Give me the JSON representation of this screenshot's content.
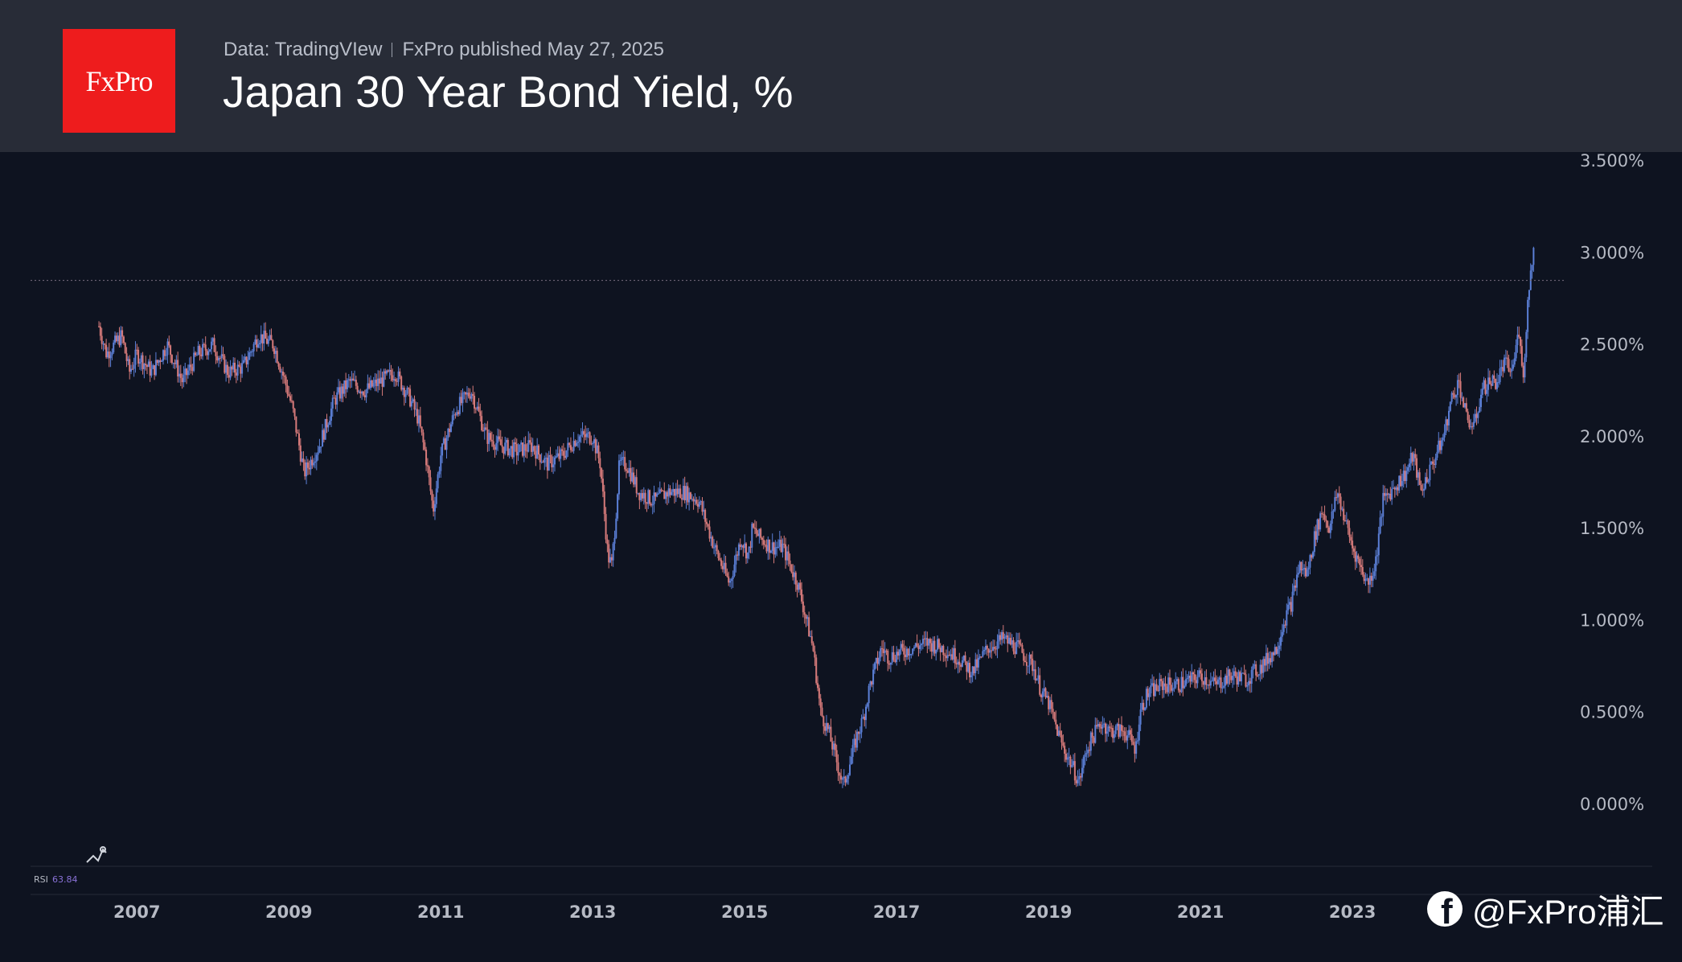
{
  "header": {
    "logo_text": "FxPro",
    "source": "Data: TradingVIew",
    "published": "FxPro published May 27, 2025",
    "title": "Japan 30 Year Bond Yield, %"
  },
  "rsi": {
    "label": "RSI",
    "value": "63.84"
  },
  "watermark": {
    "text": "@FxPro浦汇",
    "icon": "facebook-icon"
  },
  "colors": {
    "background": "#0e1320",
    "header": "#282c37",
    "logo": "#ee1c1d",
    "up": "#5b7fd6",
    "down": "#d67a7a"
  },
  "chart_data": {
    "type": "line",
    "style": "candlestick (weekly)",
    "ylim": [
      0,
      3.5
    ],
    "yticks": [
      "0.000%",
      "0.500%",
      "1.000%",
      "1.500%",
      "2.000%",
      "2.500%",
      "3.000%",
      "3.500%"
    ],
    "xticks": [
      "2007",
      "2009",
      "2011",
      "2013",
      "2015",
      "2017",
      "2019",
      "2021",
      "2023"
    ],
    "xrange": [
      2005.6,
      2026.1
    ],
    "current_level": 2.85,
    "grid": false,
    "series": [
      {
        "x": [
          2006.5,
          2006.6,
          2006.7,
          2006.8,
          2006.9,
          2007.0,
          2007.2,
          2007.4,
          2007.6,
          2007.8,
          2008.0,
          2008.2,
          2008.4,
          2008.6,
          2008.8,
          2008.95,
          2009.05,
          2009.2,
          2009.4,
          2009.6,
          2009.8,
          2010.0,
          2010.2,
          2010.4,
          2010.6,
          2010.7,
          2010.8,
          2010.9,
          2011.0,
          2011.2,
          2011.4,
          2011.6,
          2011.8,
          2012.0,
          2012.2,
          2012.4,
          2012.6,
          2012.8,
          2013.0,
          2013.1,
          2013.2,
          2013.25,
          2013.3,
          2013.35,
          2013.45,
          2013.6,
          2013.8,
          2014.0,
          2014.2,
          2014.4,
          2014.6,
          2014.8,
          2014.95,
          2015.05,
          2015.1,
          2015.2,
          2015.35,
          2015.5,
          2015.7,
          2015.9,
          2016.0,
          2016.1,
          2016.2,
          2016.3,
          2016.4,
          2016.5,
          2016.55,
          2016.65,
          2016.8,
          2016.9,
          2017.0,
          2017.2,
          2017.4,
          2017.6,
          2017.8,
          2018.0,
          2018.2,
          2018.4,
          2018.6,
          2018.8,
          2018.9,
          2019.0,
          2019.1,
          2019.2,
          2019.3,
          2019.4,
          2019.5,
          2019.6,
          2019.7,
          2019.8,
          2020.0,
          2020.15,
          2020.2,
          2020.3,
          2020.5,
          2020.7,
          2020.9,
          2021.0,
          2021.2,
          2021.4,
          2021.6,
          2021.8,
          2022.0,
          2022.1,
          2022.2,
          2022.3,
          2022.4,
          2022.5,
          2022.6,
          2022.7,
          2022.8,
          2022.9,
          2023.0,
          2023.1,
          2023.2,
          2023.3,
          2023.4,
          2023.5,
          2023.6,
          2023.7,
          2023.8,
          2023.9,
          2024.0,
          2024.1,
          2024.2,
          2024.3,
          2024.4,
          2024.5,
          2024.6,
          2024.7,
          2024.8,
          2024.9,
          2025.0,
          2025.1,
          2025.2,
          2025.25,
          2025.3,
          2025.35,
          2025.38,
          2025.4
        ],
        "values": [
          2.6,
          2.45,
          2.5,
          2.55,
          2.35,
          2.45,
          2.35,
          2.5,
          2.3,
          2.45,
          2.5,
          2.35,
          2.38,
          2.55,
          2.5,
          2.3,
          2.15,
          1.8,
          1.95,
          2.2,
          2.3,
          2.25,
          2.3,
          2.35,
          2.2,
          2.1,
          1.9,
          1.6,
          1.9,
          2.15,
          2.25,
          2.0,
          1.95,
          1.92,
          1.95,
          1.85,
          1.9,
          2.0,
          2.0,
          1.85,
          1.35,
          1.3,
          1.55,
          1.85,
          1.85,
          1.7,
          1.65,
          1.7,
          1.7,
          1.65,
          1.4,
          1.2,
          1.45,
          1.35,
          1.5,
          1.45,
          1.4,
          1.4,
          1.2,
          0.85,
          0.5,
          0.4,
          0.25,
          0.1,
          0.25,
          0.4,
          0.45,
          0.65,
          0.85,
          0.8,
          0.82,
          0.85,
          0.88,
          0.85,
          0.8,
          0.72,
          0.85,
          0.9,
          0.85,
          0.75,
          0.62,
          0.55,
          0.42,
          0.3,
          0.22,
          0.12,
          0.3,
          0.38,
          0.45,
          0.4,
          0.4,
          0.3,
          0.5,
          0.6,
          0.65,
          0.65,
          0.68,
          0.7,
          0.65,
          0.7,
          0.68,
          0.75,
          0.85,
          1.0,
          1.1,
          1.3,
          1.25,
          1.45,
          1.6,
          1.5,
          1.7,
          1.55,
          1.4,
          1.3,
          1.2,
          1.3,
          1.65,
          1.7,
          1.75,
          1.8,
          1.9,
          1.7,
          1.8,
          1.9,
          2.0,
          2.2,
          2.3,
          2.1,
          2.05,
          2.25,
          2.3,
          2.3,
          2.4,
          2.35,
          2.6,
          2.3,
          2.7,
          2.9,
          3.05,
          2.85
        ]
      }
    ]
  }
}
